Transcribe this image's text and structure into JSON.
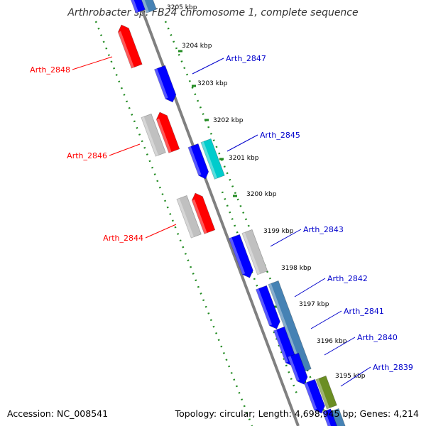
{
  "title": "Arthrobacter sp. FB24 chromosome 1, complete sequence",
  "footer": {
    "accession": "Accession: NC_008541",
    "topology": "Topology: circular; Length: 4,698,945 bp; Genes: 4,214"
  },
  "ticks": [
    {
      "label": "3205 kbp"
    },
    {
      "label": "3204 kbp"
    },
    {
      "label": "3203 kbp"
    },
    {
      "label": "3202 kbp"
    },
    {
      "label": "3201 kbp"
    },
    {
      "label": "3200 kbp"
    },
    {
      "label": "3199 kbp"
    },
    {
      "label": "3198 kbp"
    },
    {
      "label": "3197 kbp"
    },
    {
      "label": "3196 kbp"
    },
    {
      "label": "3195 kbp"
    }
  ],
  "gene_labels": [
    {
      "name": "Arth_2848",
      "color": "#ff0000"
    },
    {
      "name": "Arth_2847",
      "color": "#0000cc"
    },
    {
      "name": "Arth_2846",
      "color": "#ff0000"
    },
    {
      "name": "Arth_2845",
      "color": "#0000cc"
    },
    {
      "name": "Arth_2844",
      "color": "#ff0000"
    },
    {
      "name": "Arth_2843",
      "color": "#0000cc"
    },
    {
      "name": "Arth_2842",
      "color": "#0000cc"
    },
    {
      "name": "Arth_2841",
      "color": "#0000cc"
    },
    {
      "name": "Arth_2840",
      "color": "#0000cc"
    },
    {
      "name": "Arth_2839",
      "color": "#0000cc"
    }
  ],
  "colors": {
    "forward_cds": "#0000ff",
    "reverse_cds": "#ff0000",
    "grey_feature": "#c0c0c0",
    "cyan_feature": "#00cccc",
    "steelblue_feature": "#4682b4",
    "olive_feature": "#6b8e23",
    "backbone": "#808080",
    "dotted_track": "#228b22"
  }
}
